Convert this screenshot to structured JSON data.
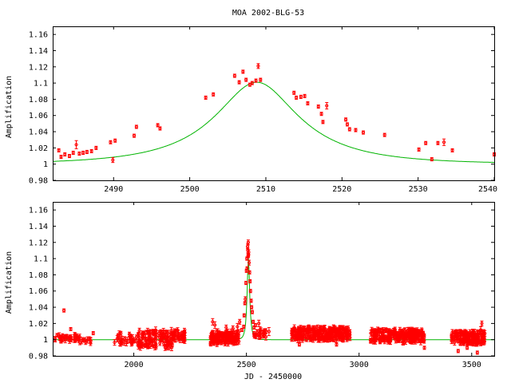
{
  "figure_title": "MOA 2002-BLG-53",
  "colors": {
    "data": "#ff0000",
    "model": "#00b400",
    "axes": "#000000"
  },
  "chart_data": [
    {
      "type": "scatter",
      "title": "MOA 2002-BLG-53",
      "xlabel": "",
      "ylabel": "Amplification",
      "xlim": [
        2482,
        2540
      ],
      "ylim": [
        0.98,
        1.17
      ],
      "xticks": [
        2490,
        2500,
        2510,
        2520,
        2530,
        2540
      ],
      "yticks": [
        0.98,
        1,
        1.02,
        1.04,
        1.06,
        1.08,
        1.1,
        1.12,
        1.14,
        1.16
      ],
      "grid": false,
      "model": {
        "t0": 2508.8,
        "u0": 0.45,
        "tE": 12.5
      },
      "series": [
        {
          "points": [
            [
              2482.8,
              1.017,
              0.002
            ],
            [
              2483.1,
              1.009,
              0.002
            ],
            [
              2483.6,
              1.012,
              0.002
            ],
            [
              2484.2,
              1.01,
              0.002
            ],
            [
              2484.7,
              1.014,
              0.002
            ],
            [
              2485.1,
              1.024,
              0.005
            ],
            [
              2485.5,
              1.013,
              0.002
            ],
            [
              2486.0,
              1.014,
              0.002
            ],
            [
              2486.5,
              1.015,
              0.002
            ],
            [
              2487.1,
              1.016,
              0.002
            ],
            [
              2487.7,
              1.02,
              0.002
            ],
            [
              2489.6,
              1.027,
              0.002
            ],
            [
              2489.9,
              1.005,
              0.003
            ],
            [
              2490.2,
              1.029,
              0.002
            ],
            [
              2492.7,
              1.035,
              0.002
            ],
            [
              2493.0,
              1.046,
              0.002
            ],
            [
              2495.8,
              1.048,
              0.002
            ],
            [
              2496.1,
              1.044,
              0.002
            ],
            [
              2502.1,
              1.082,
              0.002
            ],
            [
              2503.1,
              1.086,
              0.002
            ],
            [
              2505.9,
              1.109,
              0.002
            ],
            [
              2506.5,
              1.101,
              0.002
            ],
            [
              2507.0,
              1.114,
              0.002
            ],
            [
              2507.4,
              1.104,
              0.002
            ],
            [
              2507.9,
              1.098,
              0.002
            ],
            [
              2508.2,
              1.1,
              0.002
            ],
            [
              2508.7,
              1.103,
              0.002
            ],
            [
              2509.0,
              1.121,
              0.003
            ],
            [
              2509.3,
              1.104,
              0.002
            ],
            [
              2513.7,
              1.088,
              0.002
            ],
            [
              2514.0,
              1.082,
              0.002
            ],
            [
              2514.6,
              1.083,
              0.002
            ],
            [
              2515.1,
              1.084,
              0.002
            ],
            [
              2515.5,
              1.075,
              0.002
            ],
            [
              2516.9,
              1.071,
              0.002
            ],
            [
              2517.3,
              1.062,
              0.002
            ],
            [
              2517.5,
              1.052,
              0.002
            ],
            [
              2518.0,
              1.072,
              0.004
            ],
            [
              2520.5,
              1.055,
              0.002
            ],
            [
              2520.7,
              1.049,
              0.002
            ],
            [
              2521.0,
              1.043,
              0.002
            ],
            [
              2521.8,
              1.042,
              0.002
            ],
            [
              2522.8,
              1.039,
              0.002
            ],
            [
              2525.6,
              1.036,
              0.002
            ],
            [
              2530.1,
              1.018,
              0.002
            ],
            [
              2531.0,
              1.026,
              0.002
            ],
            [
              2531.8,
              1.006,
              0.002
            ],
            [
              2532.6,
              1.026,
              0.002
            ],
            [
              2533.4,
              1.027,
              0.004
            ],
            [
              2534.5,
              1.017,
              0.002
            ],
            [
              2540.0,
              1.012,
              0.002
            ]
          ]
        }
      ]
    },
    {
      "type": "scatter",
      "title": "",
      "xlabel": "JD - 2450000",
      "ylabel": "Amplification",
      "xlim": [
        1640,
        3600
      ],
      "ylim": [
        0.98,
        1.17
      ],
      "xticks": [
        2000,
        2500,
        3000,
        3500
      ],
      "yticks": [
        0.98,
        1,
        1.02,
        1.04,
        1.06,
        1.08,
        1.1,
        1.12,
        1.14,
        1.16
      ],
      "grid": false,
      "model": {
        "t0": 2508.8,
        "u0": 0.45,
        "tE": 12.5
      },
      "groups": [
        {
          "x": [
            1650,
            1760
          ],
          "y": [
            0.998,
            1.006
          ],
          "n": 40
        },
        {
          "x": [
            1760,
            1830
          ],
          "y": [
            0.995,
            1.002
          ],
          "n": 10
        },
        {
          "x": [
            1900,
            2020
          ],
          "y": [
            0.995,
            1.008
          ],
          "n": 30
        },
        {
          "x": [
            2020,
            2180
          ],
          "y": [
            0.99,
            1.012
          ],
          "n": 120
        },
        {
          "x": [
            2180,
            2230
          ],
          "y": [
            0.998,
            1.012
          ],
          "n": 25
        },
        {
          "x": [
            2340,
            2470
          ],
          "y": [
            0.995,
            1.01
          ],
          "n": 130
        },
        {
          "x": [
            2530,
            2590
          ],
          "y": [
            1.0,
            1.012
          ],
          "n": 20
        },
        {
          "x": [
            2700,
            2960
          ],
          "y": [
            1.0,
            1.015
          ],
          "n": 260
        },
        {
          "x": [
            3050,
            3290
          ],
          "y": [
            0.997,
            1.012
          ],
          "n": 230
        },
        {
          "x": [
            3410,
            3560
          ],
          "y": [
            0.995,
            1.01
          ],
          "n": 150
        }
      ],
      "series": [
        {
          "points": [
            [
              1690,
              1.036,
              0.002
            ],
            [
              1720,
              1.013,
              0.002
            ],
            [
              1820,
              1.008,
              0.002
            ],
            [
              2350,
              1.022,
              0.004
            ],
            [
              2360,
              1.018,
              0.004
            ],
            [
              2410,
              1.015,
              0.003
            ],
            [
              2440,
              1.014,
              0.003
            ],
            [
              2460,
              1.016,
              0.004
            ],
            [
              2470,
              1.022,
              0.003
            ],
            [
              2480,
              1.012,
              0.002
            ],
            [
              2488,
              1.016,
              0.002
            ],
            [
              2490,
              1.03,
              0.002
            ],
            [
              2493,
              1.045,
              0.002
            ],
            [
              2495,
              1.05,
              0.003
            ],
            [
              2498,
              1.07,
              0.002
            ],
            [
              2500,
              1.085,
              0.002
            ],
            [
              2502,
              1.1,
              0.002
            ],
            [
              2503,
              1.088,
              0.002
            ],
            [
              2505,
              1.115,
              0.003
            ],
            [
              2506,
              1.11,
              0.003
            ],
            [
              2507,
              1.103,
              0.002
            ],
            [
              2508,
              1.12,
              0.003
            ],
            [
              2509,
              1.104,
              0.002
            ],
            [
              2510,
              1.108,
              0.003
            ],
            [
              2512,
              1.095,
              0.003
            ],
            [
              2514,
              1.083,
              0.002
            ],
            [
              2516,
              1.072,
              0.002
            ],
            [
              2518,
              1.06,
              0.002
            ],
            [
              2521,
              1.048,
              0.002
            ],
            [
              2523,
              1.04,
              0.002
            ],
            [
              2526,
              1.034,
              0.002
            ],
            [
              2530,
              1.022,
              0.002
            ],
            [
              2534,
              1.015,
              0.002
            ],
            [
              2540,
              1.018,
              0.002
            ],
            [
              2560,
              1.012,
              0.004
            ],
            [
              2575,
              1.008,
              0.004
            ],
            [
              2600,
              1.01,
              0.005
            ],
            [
              2555,
              1.02,
              0.004
            ],
            [
              3440,
              0.986,
              0.002
            ],
            [
              3480,
              0.99,
              0.002
            ],
            [
              3525,
              0.984,
              0.002
            ],
            [
              3545,
              1.02,
              0.003
            ],
            [
              3540,
              1.012,
              0.004
            ],
            [
              3290,
              0.99,
              0.002
            ],
            [
              2735,
              0.994,
              0.002
            ],
            [
              2900,
              0.994,
              0.002
            ]
          ]
        }
      ]
    }
  ]
}
